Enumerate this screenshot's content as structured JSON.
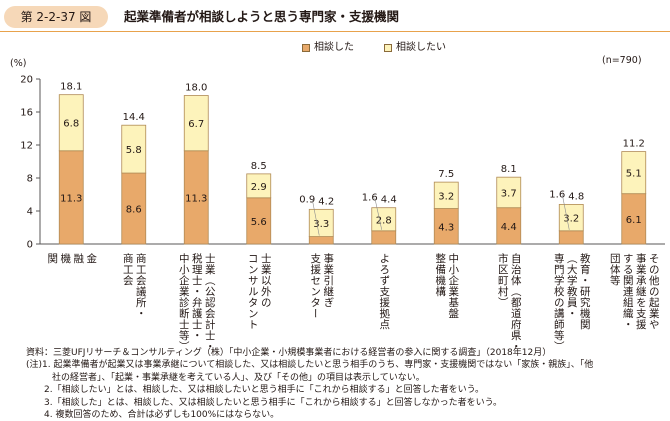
{
  "header": {
    "figure_number": "第 2-2-37 図",
    "title": "起業準備者が相談しようと思う専門家・支援機関"
  },
  "legend": [
    {
      "label": "相談した",
      "color": "#e8a96a"
    },
    {
      "label": "相談したい",
      "color": "#fdf3bb"
    }
  ],
  "n_note": "(n=790)",
  "unit_label": "(%)",
  "chart_data": {
    "type": "bar",
    "stacked": true,
    "ylim": [
      0,
      20
    ],
    "yticks": [
      0,
      4,
      8,
      12,
      16,
      20
    ],
    "categories": [
      "金\n融\n機\n関",
      "商工会議所・\n商工会",
      "士業（公認会計士・\n税理士・弁護士・\n中小企業診断士等）",
      "士業以外の\nコンサルタント",
      "事業引継ぎ\n支援センター",
      "よろず支援拠点",
      "中小企業基盤\n整備機構",
      "自治体（都道府県・\n市区町村）",
      "教育・研究機関\n（大学教員・\n専門学校の講師等）",
      "その他の起業や\n事業承継を支援\nする関連組織・\n団体等"
    ],
    "series": [
      {
        "name": "相談した",
        "values": [
          11.3,
          8.6,
          11.3,
          5.6,
          0.9,
          1.6,
          4.3,
          4.4,
          1.6,
          6.1
        ]
      },
      {
        "name": "相談したい",
        "values": [
          6.8,
          5.8,
          6.7,
          2.9,
          3.3,
          2.8,
          3.2,
          3.7,
          3.2,
          5.1
        ]
      }
    ],
    "totals": [
      "18.1",
      "14.4",
      "18.0",
      "8.5",
      "4.2",
      "4.4",
      "7.5",
      "8.1",
      "4.8",
      "11.2"
    ],
    "consulted_labels": [
      "11.3",
      "8.6",
      "11.3",
      "5.6",
      "0.9",
      "1.6",
      "4.3",
      "4.4",
      "1.6",
      "6.1"
    ],
    "want_labels": [
      "6.8",
      "5.8",
      "6.7",
      "2.9",
      "3.3",
      "2.8",
      "3.2",
      "3.7",
      "3.2",
      "5.1"
    ],
    "label_outside": [
      false,
      false,
      false,
      false,
      true,
      true,
      false,
      false,
      true,
      false
    ],
    "colors": {
      "consulted": "#e8a96a",
      "want": "#fdf3bb",
      "bar_stroke": "#b08a55",
      "axis": "#595757",
      "grid": "#bfbfbf"
    }
  },
  "notes": [
    "資料：三菱UFJリサーチ＆コンサルティング（株）「中小企業・小規模事業者における経営者の参入に関する調査」（2018年12月）",
    "(注)1. 起業準備者が起業又は事業承継について相談した、又は相談したいと思う相手のうち、専門家・支援機関ではない「家族・親族」、「他",
    "社の経営者」、「起業・事業承継を考えている人」、及び「その他」の項目は表示していない。",
    "2.「相談したい」とは、相談した、又は相談したいと思う相手に「これから相談する」と回答した者をいう。",
    "3.「相談した」とは、相談した、又は相談したいと思う相手に「これから相談する」と回答しなかった者をいう。",
    "4. 複数回答のため、合計は必ずしも100%にはならない。"
  ]
}
